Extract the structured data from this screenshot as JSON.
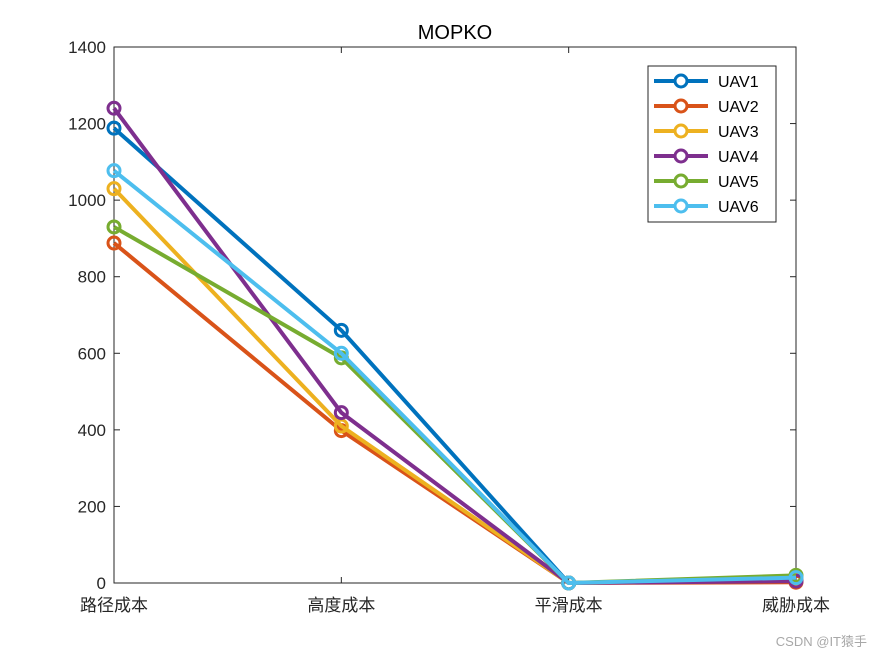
{
  "chart_data": {
    "type": "line",
    "title": "MOPKO",
    "xlabel": "",
    "ylabel": "",
    "categories": [
      "路径成本",
      "高度成本",
      "平滑成本",
      "威胁成本"
    ],
    "ylim": [
      0,
      1400
    ],
    "yticks": [
      0,
      200,
      400,
      600,
      800,
      1000,
      1200,
      1400
    ],
    "legend_position": "top-right",
    "grid": false,
    "series": [
      {
        "name": "UAV1",
        "color": "#0072BD",
        "values": [
          1188,
          660,
          0,
          12
        ]
      },
      {
        "name": "UAV2",
        "color": "#D95319",
        "values": [
          888,
          398,
          0,
          2
        ]
      },
      {
        "name": "UAV3",
        "color": "#EDB120",
        "values": [
          1030,
          410,
          0,
          8
        ]
      },
      {
        "name": "UAV4",
        "color": "#7E2F8E",
        "values": [
          1240,
          445,
          0,
          5
        ]
      },
      {
        "name": "UAV5",
        "color": "#77AC30",
        "values": [
          930,
          588,
          0,
          20
        ]
      },
      {
        "name": "UAV6",
        "color": "#4DBEEE",
        "values": [
          1077,
          600,
          0,
          14
        ]
      }
    ]
  },
  "watermark": "CSDN @IT猿手"
}
